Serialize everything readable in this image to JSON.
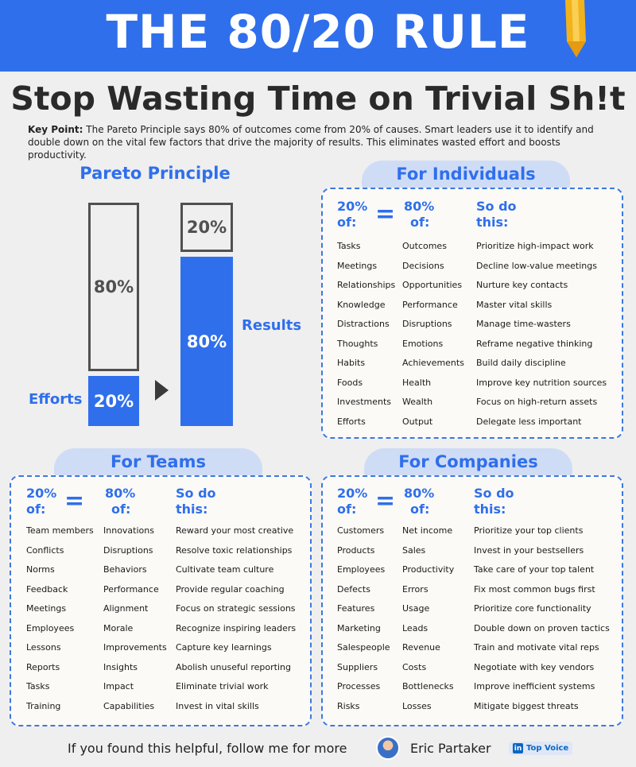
{
  "header": {
    "title": "THE 80/20 RULE",
    "subtitle": "Stop Wasting Time on Trivial Sh!t",
    "key_point_label": "Key Point:",
    "key_point_text": "The Pareto Principle says 80% of outcomes come from 20% of causes. Smart leaders use it to identify and double down on the vital few factors that drive the majority of results. This eliminates wasted effort and boosts productivity."
  },
  "pareto": {
    "title": "Pareto Principle",
    "efforts_label": "Efforts",
    "results_label": "Results",
    "efforts_small": "20%",
    "efforts_big": "80%",
    "results_small": "20%",
    "results_big": "80%"
  },
  "column_headers": {
    "col1_line1": "20%",
    "col1_line2": "of:",
    "equals": "=",
    "col2_line1": "80%",
    "col2_line2": "of:",
    "col3_line1": "So do",
    "col3_line2": "this:"
  },
  "individuals": {
    "title": "For Individuals",
    "rows": [
      [
        "Tasks",
        "Outcomes",
        "Prioritize high-impact work"
      ],
      [
        "Meetings",
        "Decisions",
        "Decline low-value meetings"
      ],
      [
        "Relationships",
        "Opportunities",
        "Nurture key contacts"
      ],
      [
        "Knowledge",
        "Performance",
        "Master vital skills"
      ],
      [
        "Distractions",
        "Disruptions",
        "Manage time-wasters"
      ],
      [
        "Thoughts",
        "Emotions",
        "Reframe negative thinking"
      ],
      [
        "Habits",
        "Achievements",
        "Build daily discipline"
      ],
      [
        "Foods",
        "Health",
        "Improve key nutrition sources"
      ],
      [
        "Investments",
        "Wealth",
        "Focus on high-return assets"
      ],
      [
        "Efforts",
        "Output",
        "Delegate less important"
      ]
    ]
  },
  "teams": {
    "title": "For Teams",
    "rows": [
      [
        "Team members",
        "Innovations",
        "Reward your most creative"
      ],
      [
        "Conflicts",
        "Disruptions",
        "Resolve toxic relationships"
      ],
      [
        "Norms",
        "Behaviors",
        "Cultivate team culture"
      ],
      [
        "Feedback",
        "Performance",
        "Provide regular coaching"
      ],
      [
        "Meetings",
        "Alignment",
        "Focus on strategic sessions"
      ],
      [
        "Employees",
        "Morale",
        "Recognize inspiring leaders"
      ],
      [
        "Lessons",
        "Improvements",
        "Capture key learnings"
      ],
      [
        "Reports",
        "Insights",
        "Abolish unuseful reporting"
      ],
      [
        "Tasks",
        "Impact",
        "Eliminate trivial work"
      ],
      [
        "Training",
        "Capabilities",
        "Invest in vital skills"
      ]
    ]
  },
  "companies": {
    "title": "For Companies",
    "rows": [
      [
        "Customers",
        "Net income",
        "Prioritize your top clients"
      ],
      [
        "Products",
        "Sales",
        "Invest in your bestsellers"
      ],
      [
        "Employees",
        "Productivity",
        "Take care of your top talent"
      ],
      [
        "Defects",
        "Errors",
        "Fix most common bugs first"
      ],
      [
        "Features",
        "Usage",
        "Prioritize core functionality"
      ],
      [
        "Marketing",
        "Leads",
        "Double down on proven tactics"
      ],
      [
        "Salespeople",
        "Revenue",
        "Train and motivate vital reps"
      ],
      [
        "Suppliers",
        "Costs",
        "Negotiate with key vendors"
      ],
      [
        "Processes",
        "Bottlenecks",
        "Improve inefficient systems"
      ],
      [
        "Risks",
        "Losses",
        "Mitigate biggest threats"
      ]
    ]
  },
  "footer": {
    "cta": "If you found this helpful, follow me for more",
    "author": "Eric Partaker",
    "badge_icon": "in",
    "badge": "Top Voice"
  },
  "colors": {
    "accent": "#2f6fec",
    "background": "#efefef",
    "card": "#fbfaf6",
    "pill": "#cfdcf5"
  },
  "icons": [
    "pencil-icon",
    "arrow-right-icon",
    "avatar",
    "linkedin-icon"
  ]
}
